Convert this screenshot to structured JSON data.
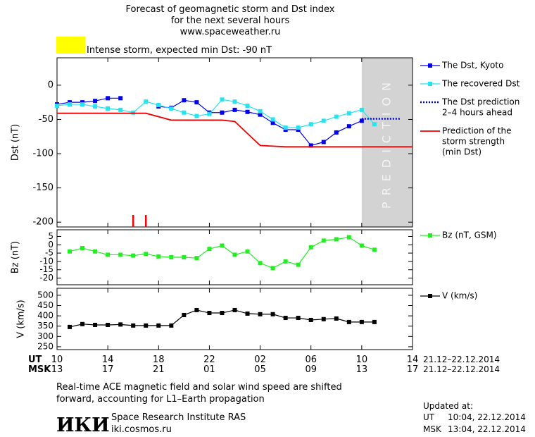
{
  "chart_data": [
    {
      "type": "line",
      "title": [
        "Forecast of geomagnetic storm and Dst index",
        "for the next several hours",
        "www.spaceweather.ru"
      ],
      "annotation": "Intense storm, expected min Dst: -90 nT",
      "annotation_color": "#ffff00",
      "ylabel": "Dst (nT)",
      "xlim": [
        0,
        28
      ],
      "ylim": [
        -207,
        40
      ],
      "yticks": [
        -200,
        -150,
        -100,
        -50,
        0
      ],
      "prediction_zone": {
        "from": 24,
        "to": 28,
        "label": "PREDICTION",
        "color": "#d3d3d3"
      },
      "gap_ticks": {
        "x": [
          6,
          7
        ],
        "color": "#ff0000"
      },
      "series": [
        {
          "name": [
            "The Dst, Kyoto"
          ],
          "color": "#0000ee",
          "marker": "square",
          "style": "solid",
          "x": [
            0,
            1,
            2,
            3,
            4,
            5,
            6,
            7,
            8,
            9,
            10,
            11,
            12,
            13,
            14,
            15,
            16,
            17,
            18,
            19,
            20,
            21,
            22,
            23,
            24
          ],
          "values": [
            -28,
            -25,
            -25,
            -23,
            -19,
            -19,
            null,
            null,
            -31,
            -33,
            -22,
            -25,
            -40,
            -40,
            -36,
            -39,
            -43,
            -55,
            -65,
            -65,
            -88,
            -83,
            -69,
            -60,
            -52
          ]
        },
        {
          "name": [
            "The recovered Dst"
          ],
          "color": "#22e5f0",
          "marker": "square",
          "style": "solid",
          "x": [
            0,
            1,
            2,
            3,
            4,
            5,
            6,
            7,
            8,
            9,
            10,
            11,
            12,
            13,
            14,
            15,
            16,
            17,
            18,
            19,
            20,
            21,
            22,
            23,
            24,
            25
          ],
          "values": [
            -30,
            -28,
            -28,
            -31,
            -34,
            -36,
            -40,
            -24,
            -29,
            -34,
            -40,
            -45,
            -42,
            -21,
            -24,
            -30,
            -38,
            -50,
            -62,
            -62,
            -57,
            -52,
            -46,
            -41,
            -36,
            -57
          ]
        },
        {
          "name": [
            "The Dst prediction",
            "2–4 hours ahead"
          ],
          "color": "#0000ee",
          "marker": "none",
          "style": "dotted",
          "x": [
            24,
            27
          ],
          "values": [
            -49,
            -49
          ]
        },
        {
          "name": [
            "Prediction of the",
            "storm strength",
            "(min Dst)"
          ],
          "color": "#ee0000",
          "marker": "none",
          "style": "solid",
          "x": [
            0,
            7,
            9,
            13,
            14,
            16,
            18,
            28
          ],
          "values": [
            -41,
            -41,
            -51,
            -51,
            -53,
            -88,
            -90,
            -90
          ]
        }
      ]
    },
    {
      "type": "line",
      "ylabel": "Bz (nT)",
      "xlim": [
        0,
        28
      ],
      "ylim": [
        -24,
        9
      ],
      "yticks": [
        -20,
        -15,
        -10,
        -5,
        0,
        5
      ],
      "series": [
        {
          "name": [
            "Bz (nT, GSM)"
          ],
          "color": "#22ee22",
          "marker": "square",
          "style": "solid",
          "x": [
            1,
            2,
            3,
            4,
            5,
            6,
            7,
            8,
            9,
            10,
            11,
            12,
            13,
            14,
            15,
            16,
            17,
            18,
            19,
            20,
            21,
            22,
            23,
            24,
            25
          ],
          "values": [
            -4,
            -2,
            -4,
            -6,
            -6,
            -6.5,
            -5.5,
            -7,
            -7.5,
            -7.5,
            -8,
            -2.5,
            -0.5,
            -6,
            -4,
            -11,
            -14,
            -10,
            -12,
            -1.5,
            2.5,
            3.3,
            4.5,
            -0.5,
            -3
          ]
        }
      ]
    },
    {
      "type": "line",
      "ylabel": "V (km/s)",
      "xlim": [
        0,
        28
      ],
      "ylim": [
        236,
        534
      ],
      "yticks": [
        250,
        300,
        350,
        400,
        450,
        500
      ],
      "xlabel": "UT",
      "xlabel2": "MSK",
      "xticks": [
        {
          "value": 0,
          "label": "10"
        },
        {
          "value": 4,
          "label": "14"
        },
        {
          "value": 8,
          "label": "18"
        },
        {
          "value": 12,
          "label": "22"
        },
        {
          "value": 16,
          "label": "02"
        },
        {
          "value": 20,
          "label": "06"
        },
        {
          "value": 24,
          "label": "10"
        },
        {
          "value": 28,
          "label": "14"
        }
      ],
      "xticks2": [
        {
          "value": 0,
          "label": "13"
        },
        {
          "value": 4,
          "label": "17"
        },
        {
          "value": 8,
          "label": "21"
        },
        {
          "value": 12,
          "label": "01"
        },
        {
          "value": 16,
          "label": "05"
        },
        {
          "value": 20,
          "label": "09"
        },
        {
          "value": 24,
          "label": "13"
        },
        {
          "value": 28,
          "label": "17"
        }
      ],
      "xtick_date": "21.12–22.12.2014",
      "xtick2_date": "21.12–22.12.2014",
      "series": [
        {
          "name": [
            "V (km/s)"
          ],
          "color": "#000000",
          "marker": "square",
          "style": "solid",
          "x": [
            1,
            2,
            3,
            4,
            5,
            6,
            7,
            8,
            9,
            10,
            11,
            12,
            13,
            14,
            15,
            16,
            17,
            18,
            19,
            20,
            21,
            22,
            23,
            24,
            25
          ],
          "values": [
            346,
            360,
            356,
            356,
            358,
            353,
            353,
            353,
            353,
            404,
            428,
            414,
            414,
            428,
            411,
            408,
            408,
            390,
            390,
            380,
            384,
            387,
            370,
            370,
            370
          ]
        }
      ]
    }
  ],
  "footer": {
    "note": [
      "Real-time ACE magnetic field and solar wind speed are shifted",
      "forward, accounting for L1–Earth propagation"
    ],
    "logo": "ИКИ",
    "institute": "Space Research Institute RAS",
    "url": "iki.cosmos.ru",
    "updated": {
      "label": "Updated at:",
      "ut_label": "UT",
      "ut": "10:04, 22.12.2014",
      "msk_label": "MSK",
      "msk": "13:04, 22.12.2014"
    }
  }
}
